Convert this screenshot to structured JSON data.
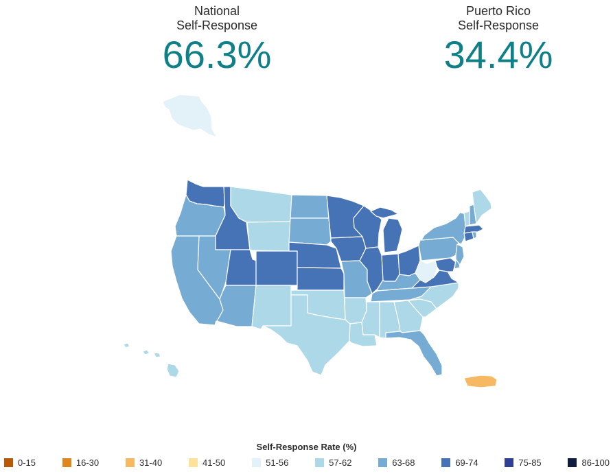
{
  "stats": {
    "national": {
      "label": "National\nSelf-Response",
      "value": "66.3%"
    },
    "puerto_rico": {
      "label": "Puerto Rico\nSelf-Response",
      "value": "34.4%"
    }
  },
  "legend": {
    "title": "Self-Response Rate (%)",
    "items": [
      {
        "range": "0-15",
        "color": "#b65a0a"
      },
      {
        "range": "16-30",
        "color": "#e0861e"
      },
      {
        "range": "31-40",
        "color": "#f6b862"
      },
      {
        "range": "41-50",
        "color": "#fde29a"
      },
      {
        "range": "51-56",
        "color": "#e2f2f8"
      },
      {
        "range": "57-62",
        "color": "#acd8e7"
      },
      {
        "range": "63-68",
        "color": "#76abd3"
      },
      {
        "range": "69-74",
        "color": "#4672b6"
      },
      {
        "range": "75-85",
        "color": "#303f93"
      },
      {
        "range": "86-100",
        "color": "#101d3e"
      }
    ]
  },
  "regions": [
    {
      "name": "Alaska",
      "bin": "51-56",
      "color": "#e2f2f8"
    },
    {
      "name": "Hawaii",
      "bin": "57-62",
      "color": "#acd8e7"
    },
    {
      "name": "Washington",
      "bin": "69-74",
      "color": "#4672b6"
    },
    {
      "name": "Oregon",
      "bin": "63-68",
      "color": "#76abd3"
    },
    {
      "name": "California",
      "bin": "63-68",
      "color": "#76abd3"
    },
    {
      "name": "Idaho",
      "bin": "69-74",
      "color": "#4672b6"
    },
    {
      "name": "Nevada",
      "bin": "63-68",
      "color": "#76abd3"
    },
    {
      "name": "Utah",
      "bin": "69-74",
      "color": "#4672b6"
    },
    {
      "name": "Arizona",
      "bin": "63-68",
      "color": "#76abd3"
    },
    {
      "name": "Montana",
      "bin": "57-62",
      "color": "#acd8e7"
    },
    {
      "name": "Wyoming",
      "bin": "57-62",
      "color": "#acd8e7"
    },
    {
      "name": "Colorado",
      "bin": "69-74",
      "color": "#4672b6"
    },
    {
      "name": "New Mexico",
      "bin": "57-62",
      "color": "#acd8e7"
    },
    {
      "name": "North Dakota",
      "bin": "63-68",
      "color": "#76abd3"
    },
    {
      "name": "South Dakota",
      "bin": "63-68",
      "color": "#76abd3"
    },
    {
      "name": "Nebraska",
      "bin": "69-74",
      "color": "#4672b6"
    },
    {
      "name": "Kansas",
      "bin": "69-74",
      "color": "#4672b6"
    },
    {
      "name": "Oklahoma",
      "bin": "57-62",
      "color": "#acd8e7"
    },
    {
      "name": "Texas",
      "bin": "57-62",
      "color": "#acd8e7"
    },
    {
      "name": "Minnesota",
      "bin": "69-74",
      "color": "#4672b6"
    },
    {
      "name": "Iowa",
      "bin": "69-74",
      "color": "#4672b6"
    },
    {
      "name": "Missouri",
      "bin": "63-68",
      "color": "#76abd3"
    },
    {
      "name": "Arkansas",
      "bin": "57-62",
      "color": "#acd8e7"
    },
    {
      "name": "Louisiana",
      "bin": "57-62",
      "color": "#acd8e7"
    },
    {
      "name": "Wisconsin",
      "bin": "69-74",
      "color": "#4672b6"
    },
    {
      "name": "Illinois",
      "bin": "69-74",
      "color": "#4672b6"
    },
    {
      "name": "Michigan",
      "bin": "69-74",
      "color": "#4672b6"
    },
    {
      "name": "Indiana",
      "bin": "69-74",
      "color": "#4672b6"
    },
    {
      "name": "Ohio",
      "bin": "69-74",
      "color": "#4672b6"
    },
    {
      "name": "Kentucky",
      "bin": "63-68",
      "color": "#76abd3"
    },
    {
      "name": "Tennessee",
      "bin": "63-68",
      "color": "#76abd3"
    },
    {
      "name": "Mississippi",
      "bin": "57-62",
      "color": "#acd8e7"
    },
    {
      "name": "Alabama",
      "bin": "57-62",
      "color": "#acd8e7"
    },
    {
      "name": "Georgia",
      "bin": "57-62",
      "color": "#acd8e7"
    },
    {
      "name": "Florida",
      "bin": "63-68",
      "color": "#76abd3"
    },
    {
      "name": "South Carolina",
      "bin": "57-62",
      "color": "#acd8e7"
    },
    {
      "name": "North Carolina",
      "bin": "57-62",
      "color": "#acd8e7"
    },
    {
      "name": "Virginia",
      "bin": "69-74",
      "color": "#4672b6"
    },
    {
      "name": "West Virginia",
      "bin": "51-56",
      "color": "#e2f2f8"
    },
    {
      "name": "Pennsylvania",
      "bin": "63-68",
      "color": "#76abd3"
    },
    {
      "name": "New York",
      "bin": "63-68",
      "color": "#76abd3"
    },
    {
      "name": "Maryland",
      "bin": "69-74",
      "color": "#4672b6"
    },
    {
      "name": "Delaware",
      "bin": "63-68",
      "color": "#76abd3"
    },
    {
      "name": "New Jersey",
      "bin": "63-68",
      "color": "#76abd3"
    },
    {
      "name": "Connecticut",
      "bin": "69-74",
      "color": "#4672b6"
    },
    {
      "name": "Rhode Island",
      "bin": "63-68",
      "color": "#76abd3"
    },
    {
      "name": "Massachusetts",
      "bin": "69-74",
      "color": "#4672b6"
    },
    {
      "name": "Vermont",
      "bin": "57-62",
      "color": "#acd8e7"
    },
    {
      "name": "New Hampshire",
      "bin": "63-68",
      "color": "#76abd3"
    },
    {
      "name": "Maine",
      "bin": "57-62",
      "color": "#acd8e7"
    },
    {
      "name": "Puerto Rico",
      "bin": "31-40",
      "color": "#f6b862"
    }
  ]
}
